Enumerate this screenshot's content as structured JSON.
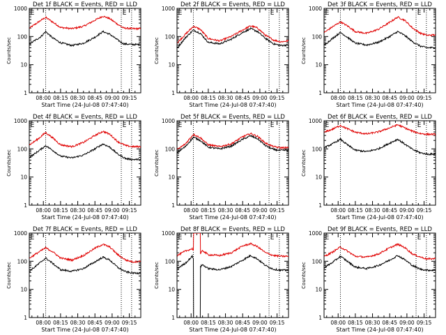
{
  "figure": {
    "background": "#ffffff",
    "events_color": "#000000",
    "lld_color": "#e00000"
  },
  "chart_data": [
    {
      "type": "line",
      "title": "Det 1f BLACK = Events, RED = LLD",
      "xlabel": "Start Time (24-Jul-08 07:47:40)",
      "ylabel": "Counts/sec",
      "xticks": [
        "08:00",
        "08:15",
        "08:30",
        "08:45",
        "09:00",
        "09:15"
      ],
      "xtick_minutes": [
        0,
        15,
        30,
        45,
        60,
        75
      ],
      "xlim_minutes": [
        -12.3,
        85
      ],
      "ylim": [
        1,
        1000
      ],
      "ylog": true,
      "yticks": [
        "1",
        "10",
        "100",
        "1000"
      ],
      "event_markers": [
        "E",
        "E"
      ],
      "vlines_minutes": [
        2,
        68,
        77
      ],
      "series": [
        {
          "name": "",
          "color": "#e00000",
          "x": [
            -12,
            -2,
            2,
            8,
            15,
            25,
            35,
            45,
            52,
            58,
            65,
            70,
            78,
            85
          ],
          "y": [
            200,
            380,
            480,
            330,
            210,
            190,
            230,
            380,
            530,
            430,
            270,
            200,
            190,
            190
          ]
        },
        {
          "name": "",
          "color": "#000000",
          "x": [
            -12,
            -2,
            2,
            8,
            15,
            25,
            35,
            45,
            52,
            58,
            65,
            70,
            78,
            85
          ],
          "y": [
            55,
            100,
            150,
            90,
            60,
            48,
            58,
            95,
            150,
            120,
            75,
            55,
            52,
            52
          ]
        }
      ]
    },
    {
      "type": "line",
      "title": "Det 2f BLACK = Events, RED = LLD",
      "xlabel": "Start Time (24-Jul-08 07:47:40)",
      "ylabel": "Counts/sec",
      "xticks": [
        "08:00",
        "08:15",
        "08:30",
        "08:45",
        "09:00",
        "09:15"
      ],
      "xtick_minutes": [
        0,
        15,
        30,
        45,
        60,
        75
      ],
      "xlim_minutes": [
        -12.3,
        85
      ],
      "ylim": [
        1,
        1000
      ],
      "ylog": true,
      "yticks": [
        "1",
        "10",
        "100",
        "1000"
      ],
      "event_markers": [
        "E",
        "E"
      ],
      "vlines_minutes": [
        2,
        68,
        77
      ],
      "series": [
        {
          "name": "",
          "color": "#e00000",
          "x": [
            -12,
            -5,
            2,
            8,
            15,
            25,
            35,
            45,
            52,
            58,
            65,
            72,
            78,
            85
          ],
          "y": [
            60,
            120,
            230,
            180,
            85,
            70,
            100,
            170,
            240,
            200,
            110,
            75,
            65,
            70
          ]
        },
        {
          "name": "",
          "color": "#000000",
          "x": [
            -12,
            -5,
            2,
            8,
            15,
            25,
            35,
            45,
            52,
            58,
            65,
            72,
            78,
            85
          ],
          "y": [
            40,
            90,
            170,
            130,
            62,
            55,
            80,
            140,
            190,
            150,
            85,
            55,
            48,
            50
          ]
        }
      ]
    },
    {
      "type": "line",
      "title": "Det 3f BLACK = Events, RED = LLD",
      "xlabel": "Start Time (24-Jul-08 07:47:40)",
      "ylabel": "Counts/sec",
      "xticks": [
        "08:00",
        "08:15",
        "08:30",
        "08:45",
        "09:00",
        "09:15"
      ],
      "xtick_minutes": [
        0,
        15,
        30,
        45,
        60,
        75
      ],
      "xlim_minutes": [
        -12.3,
        85
      ],
      "ylim": [
        1,
        1000
      ],
      "ylog": true,
      "yticks": [
        "1",
        "10",
        "100",
        "1000"
      ],
      "event_markers": [
        "E",
        "E"
      ],
      "vlines_minutes": [
        2,
        68,
        77
      ],
      "series": [
        {
          "name": "",
          "color": "#e00000",
          "x": [
            -12,
            -5,
            2,
            8,
            15,
            25,
            35,
            45,
            52,
            58,
            65,
            72,
            78,
            85
          ],
          "y": [
            140,
            220,
            330,
            240,
            150,
            130,
            180,
            320,
            490,
            380,
            200,
            130,
            110,
            115
          ]
        },
        {
          "name": "",
          "color": "#000000",
          "x": [
            -12,
            -5,
            2,
            8,
            15,
            25,
            35,
            45,
            52,
            58,
            65,
            72,
            78,
            85
          ],
          "y": [
            50,
            85,
            140,
            95,
            58,
            50,
            62,
            100,
            150,
            110,
            65,
            45,
            40,
            40
          ]
        }
      ]
    },
    {
      "type": "line",
      "title": "Det 4f BLACK = Events, RED = LLD",
      "xlabel": "Start Time (24-Jul-08 07:47:40)",
      "ylabel": "Counts/sec",
      "xticks": [
        "08:00",
        "08:15",
        "08:30",
        "08:45",
        "09:00",
        "09:15"
      ],
      "xtick_minutes": [
        0,
        15,
        30,
        45,
        60,
        75
      ],
      "xlim_minutes": [
        -12.3,
        85
      ],
      "ylim": [
        1,
        1000
      ],
      "ylog": true,
      "yticks": [
        "1",
        "10",
        "100",
        "1000"
      ],
      "event_markers": [
        "E",
        "E"
      ],
      "vlines_minutes": [
        2,
        68,
        77
      ],
      "series": [
        {
          "name": "",
          "color": "#e00000",
          "x": [
            -12,
            -5,
            2,
            8,
            15,
            25,
            35,
            45,
            52,
            58,
            65,
            72,
            78,
            85
          ],
          "y": [
            140,
            220,
            380,
            250,
            140,
            120,
            170,
            300,
            420,
            330,
            180,
            130,
            120,
            120
          ]
        },
        {
          "name": "",
          "color": "#000000",
          "x": [
            -12,
            -5,
            2,
            8,
            15,
            25,
            35,
            45,
            52,
            58,
            65,
            72,
            78,
            85
          ],
          "y": [
            50,
            80,
            130,
            90,
            55,
            48,
            60,
            100,
            150,
            115,
            65,
            45,
            42,
            42
          ]
        }
      ]
    },
    {
      "type": "line",
      "title": "Det 5f BLACK = Events, RED = LLD",
      "xlabel": "Start Time (24-Jul-08 07:47:40)",
      "ylabel": "Counts/sec",
      "xticks": [
        "08:00",
        "08:15",
        "08:30",
        "08:45",
        "09:00",
        "09:15"
      ],
      "xtick_minutes": [
        0,
        15,
        30,
        45,
        60,
        75
      ],
      "xlim_minutes": [
        -12.3,
        85
      ],
      "ylim": [
        1,
        1000
      ],
      "ylog": true,
      "yticks": [
        "1",
        "10",
        "100",
        "1000"
      ],
      "event_markers": [
        "E",
        "E"
      ],
      "vlines_minutes": [
        2,
        68,
        77
      ],
      "series": [
        {
          "name": "",
          "color": "#e00000",
          "x": [
            -12,
            -5,
            2,
            8,
            15,
            25,
            35,
            45,
            52,
            58,
            65,
            72,
            78,
            85
          ],
          "y": [
            95,
            150,
            330,
            250,
            140,
            120,
            150,
            270,
            350,
            280,
            160,
            120,
            110,
            110
          ]
        },
        {
          "name": "",
          "color": "#000000",
          "x": [
            -12,
            -5,
            2,
            8,
            15,
            25,
            35,
            45,
            52,
            58,
            65,
            72,
            78,
            85
          ],
          "y": [
            75,
            120,
            260,
            200,
            115,
            100,
            125,
            220,
            290,
            230,
            130,
            95,
            88,
            90
          ]
        }
      ]
    },
    {
      "type": "line",
      "title": "Det 6f BLACK = Events, RED = LLD",
      "xlabel": "Start Time (24-Jul-08 07:47:40)",
      "ylabel": "Counts/sec",
      "xticks": [
        "08:00",
        "08:15",
        "08:30",
        "08:45",
        "09:00",
        "09:15"
      ],
      "xtick_minutes": [
        0,
        15,
        30,
        45,
        60,
        75
      ],
      "xlim_minutes": [
        -12.3,
        85
      ],
      "ylim": [
        1,
        1000
      ],
      "ylog": true,
      "yticks": [
        "1",
        "10",
        "100",
        "1000"
      ],
      "event_markers": [
        "E",
        "E"
      ],
      "vlines_minutes": [
        2,
        68,
        77
      ],
      "series": [
        {
          "name": "",
          "color": "#e00000",
          "x": [
            -12,
            -5,
            2,
            8,
            15,
            25,
            35,
            45,
            52,
            58,
            65,
            72,
            78,
            85
          ],
          "y": [
            390,
            500,
            680,
            520,
            390,
            340,
            400,
            560,
            720,
            560,
            420,
            350,
            330,
            330
          ]
        },
        {
          "name": "",
          "color": "#000000",
          "x": [
            -12,
            -5,
            2,
            8,
            15,
            25,
            35,
            45,
            52,
            58,
            65,
            72,
            78,
            85
          ],
          "y": [
            110,
            150,
            220,
            140,
            90,
            80,
            100,
            160,
            220,
            150,
            95,
            72,
            65,
            65
          ]
        }
      ]
    },
    {
      "type": "line",
      "title": "Det 7f BLACK = Events, RED = LLD",
      "xlabel": "Start Time (24-Jul-08 07:47:40)",
      "ylabel": "Counts/sec",
      "xticks": [
        "08:00",
        "08:15",
        "08:30",
        "08:45",
        "09:00",
        "09:15"
      ],
      "xtick_minutes": [
        0,
        15,
        30,
        45,
        60,
        75
      ],
      "xlim_minutes": [
        -12.3,
        85
      ],
      "ylim": [
        1,
        1000
      ],
      "ylog": true,
      "yticks": [
        "1",
        "10",
        "100",
        "1000"
      ],
      "event_markers": [
        "E",
        "E"
      ],
      "vlines_minutes": [
        2,
        68,
        77
      ],
      "series": [
        {
          "name": "",
          "color": "#e00000",
          "x": [
            -12,
            -5,
            2,
            8,
            15,
            25,
            35,
            45,
            52,
            58,
            65,
            72,
            78,
            85
          ],
          "y": [
            130,
            200,
            300,
            220,
            130,
            110,
            160,
            290,
            400,
            320,
            170,
            110,
            95,
            100
          ]
        },
        {
          "name": "",
          "color": "#000000",
          "x": [
            -12,
            -5,
            2,
            8,
            15,
            25,
            35,
            45,
            52,
            58,
            65,
            72,
            78,
            85
          ],
          "y": [
            45,
            75,
            130,
            85,
            50,
            44,
            55,
            95,
            140,
            110,
            60,
            42,
            38,
            38
          ]
        }
      ]
    },
    {
      "type": "line",
      "title": "Det 8f BLACK = Events, RED = LLD",
      "xlabel": "Start Time (24-Jul-08 07:47:40)",
      "ylabel": "Counts/sec",
      "xticks": [
        "08:00",
        "08:15",
        "08:30",
        "08:45",
        "09:00",
        "09:15"
      ],
      "xtick_minutes": [
        0,
        15,
        30,
        45,
        60,
        75
      ],
      "xlim_minutes": [
        -12.3,
        85
      ],
      "ylim": [
        1,
        1000
      ],
      "ylog": true,
      "yticks": [
        "1",
        "10",
        "100",
        "1000"
      ],
      "event_markers": [
        "E",
        "E"
      ],
      "vlines_minutes": [
        2,
        68,
        77
      ],
      "series": [
        {
          "name": "",
          "color": "#e00000",
          "x": [
            -12,
            -5,
            1,
            2,
            2.2,
            8,
            8.2,
            10,
            15,
            25,
            35,
            45,
            52,
            58,
            65,
            72,
            78,
            85
          ],
          "y": [
            160,
            230,
            280,
            250,
            1000,
            1000,
            180,
            240,
            170,
            160,
            200,
            350,
            420,
            330,
            200,
            160,
            150,
            150
          ]
        },
        {
          "name": "",
          "color": "#000000",
          "x": [
            -12,
            -5,
            1,
            2,
            2.2,
            8,
            8.2,
            10,
            15,
            25,
            35,
            45,
            52,
            58,
            65,
            72,
            78,
            85
          ],
          "y": [
            55,
            85,
            150,
            130,
            1,
            1,
            65,
            75,
            55,
            50,
            65,
            110,
            160,
            120,
            70,
            52,
            48,
            48
          ]
        }
      ]
    },
    {
      "type": "line",
      "title": "Det 9f BLACK = Events, RED = LLD",
      "xlabel": "Start Time (24-Jul-08 07:47:40)",
      "ylabel": "Counts/sec",
      "xticks": [
        "08:00",
        "08:15",
        "08:30",
        "08:45",
        "09:00",
        "09:15"
      ],
      "xtick_minutes": [
        0,
        15,
        30,
        45,
        60,
        75
      ],
      "xlim_minutes": [
        -12.3,
        85
      ],
      "ylim": [
        1,
        1000
      ],
      "ylog": true,
      "yticks": [
        "1",
        "10",
        "100",
        "1000"
      ],
      "event_markers": [
        "E",
        "E"
      ],
      "vlines_minutes": [
        2,
        68,
        77
      ],
      "series": [
        {
          "name": "",
          "color": "#e00000",
          "x": [
            -12,
            -5,
            2,
            8,
            15,
            25,
            35,
            45,
            52,
            58,
            65,
            72,
            78,
            85
          ],
          "y": [
            150,
            210,
            320,
            230,
            150,
            140,
            180,
            300,
            400,
            310,
            180,
            140,
            120,
            125
          ]
        },
        {
          "name": "",
          "color": "#000000",
          "x": [
            -12,
            -5,
            2,
            8,
            15,
            25,
            35,
            45,
            52,
            58,
            65,
            72,
            78,
            85
          ],
          "y": [
            60,
            90,
            150,
            100,
            62,
            55,
            70,
            110,
            160,
            115,
            70,
            52,
            48,
            48
          ]
        }
      ]
    }
  ]
}
